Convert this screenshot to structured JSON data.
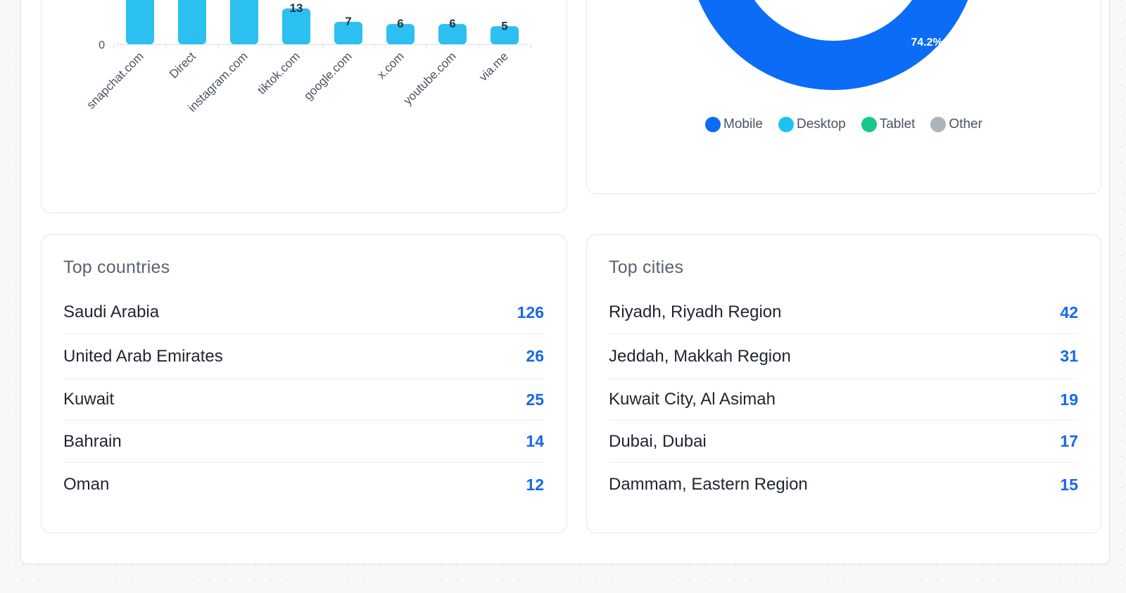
{
  "colors": {
    "accent": "#1769e6",
    "bar": "#2bc0f0",
    "mobile": "#0b6cf5",
    "desktop": "#18c3f3",
    "tablet": "#16c98b",
    "other": "#adb3bd"
  },
  "chart_data": [
    {
      "type": "bar",
      "categories": [
        "snapchat.com",
        "Direct",
        "instagram.com",
        "tiktok.com",
        "google.com",
        "x.com",
        "youtube.com",
        "via.me"
      ],
      "values": [
        null,
        null,
        null,
        13,
        7,
        6,
        6,
        5
      ],
      "value_labels": [
        "",
        "",
        "",
        "13",
        "7",
        "6",
        "6",
        "5"
      ],
      "y_tick_label": "0",
      "title": "",
      "xlabel": "",
      "ylabel": ""
    },
    {
      "type": "pie",
      "variant": "donut",
      "slices": [
        {
          "name": "Mobile",
          "percent": 74.2,
          "color": "#0b6cf5"
        },
        {
          "name": "Desktop",
          "color": "#18c3f3"
        },
        {
          "name": "Tablet",
          "color": "#16c98b"
        },
        {
          "name": "Other",
          "color": "#adb3bd"
        }
      ],
      "slice_label": "74.2%",
      "legend_placement": "bottom"
    }
  ],
  "legend": [
    {
      "label": "Mobile",
      "color": "#0b6cf5"
    },
    {
      "label": "Desktop",
      "color": "#18c3f3"
    },
    {
      "label": "Tablet",
      "color": "#16c98b"
    },
    {
      "label": "Other",
      "color": "#adb3bd"
    }
  ],
  "countries": {
    "title": "Top countries",
    "rows": [
      {
        "name": "Saudi Arabia",
        "value": "126"
      },
      {
        "name": "United Arab Emirates",
        "value": "26"
      },
      {
        "name": "Kuwait",
        "value": "25"
      },
      {
        "name": "Bahrain",
        "value": "14"
      },
      {
        "name": "Oman",
        "value": "12"
      }
    ]
  },
  "cities": {
    "title": "Top cities",
    "rows": [
      {
        "name": "Riyadh, Riyadh Region",
        "value": "42"
      },
      {
        "name": "Jeddah, Makkah Region",
        "value": "31"
      },
      {
        "name": "Kuwait City, Al Asimah",
        "value": "19"
      },
      {
        "name": "Dubai, Dubai",
        "value": "17"
      },
      {
        "name": "Dammam, Eastern Region",
        "value": "15"
      }
    ]
  }
}
